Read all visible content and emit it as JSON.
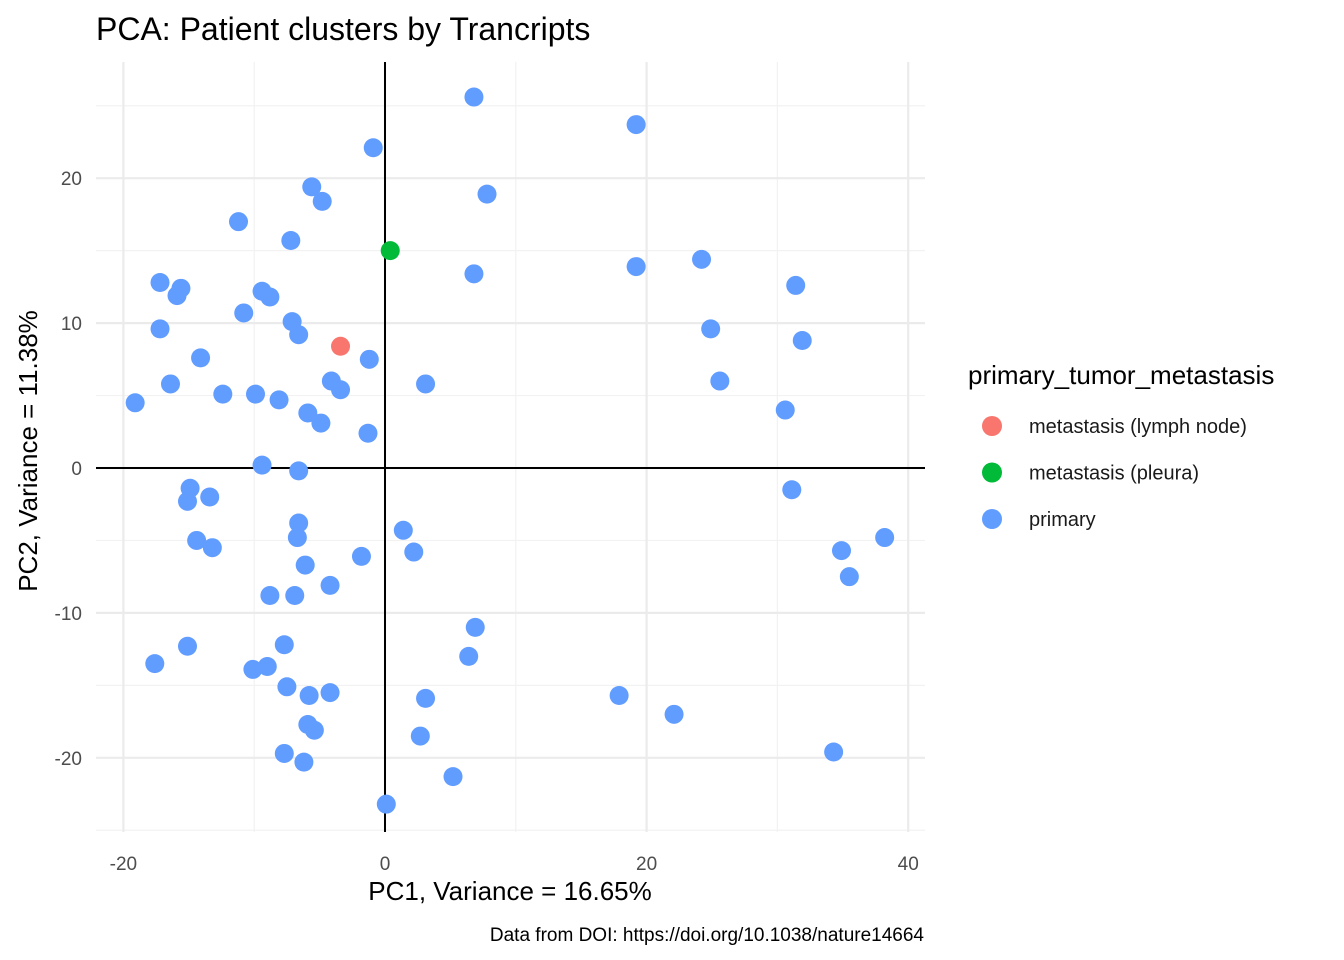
{
  "chart_data": {
    "type": "scatter",
    "title": "PCA: Patient clusters by Trancripts",
    "xlabel": "PC1, Variance = 16.65%",
    "ylabel": "PC2, Variance = 11.38%",
    "caption": "Data from DOI: https://doi.org/10.1038/nature14664",
    "xlim": [
      -22,
      41
    ],
    "ylim": [
      -25.5,
      28
    ],
    "x_ticks": [
      -20,
      0,
      20,
      40
    ],
    "y_ticks": [
      -20,
      -10,
      0,
      10,
      20
    ],
    "x_tick_labels": [
      "-20",
      "0",
      "20",
      "40"
    ],
    "y_tick_labels": [
      "-20",
      "-10",
      "0",
      "10",
      "20"
    ],
    "grid": true,
    "reference_lines": {
      "x": 0,
      "y": 0
    },
    "legend": {
      "title": "primary_tumor_metastasis",
      "placement": "right"
    },
    "series": [
      {
        "name": "metastasis (lymph node)",
        "color": "#F8766D",
        "points": [
          [
            -3.4,
            8.4
          ]
        ]
      },
      {
        "name": "metastasis (pleura)",
        "color": "#00BA38",
        "points": [
          [
            0.4,
            15.0
          ]
        ]
      },
      {
        "name": "primary",
        "color": "#619CFF",
        "points": [
          [
            6.8,
            25.6
          ],
          [
            19.2,
            23.7
          ],
          [
            -0.9,
            22.1
          ],
          [
            -5.6,
            19.4
          ],
          [
            7.8,
            18.9
          ],
          [
            -4.8,
            18.4
          ],
          [
            -11.2,
            17.0
          ],
          [
            -7.2,
            15.7
          ],
          [
            19.2,
            13.9
          ],
          [
            6.8,
            13.4
          ],
          [
            24.2,
            14.4
          ],
          [
            31.4,
            12.6
          ],
          [
            -17.2,
            12.8
          ],
          [
            -15.6,
            12.4
          ],
          [
            -15.9,
            11.9
          ],
          [
            -9.4,
            12.2
          ],
          [
            -8.8,
            11.8
          ],
          [
            -10.8,
            10.7
          ],
          [
            -7.1,
            10.1
          ],
          [
            -6.6,
            9.2
          ],
          [
            24.9,
            9.6
          ],
          [
            31.9,
            8.8
          ],
          [
            -17.2,
            9.6
          ],
          [
            -14.1,
            7.6
          ],
          [
            -1.2,
            7.5
          ],
          [
            -16.4,
            5.8
          ],
          [
            -12.4,
            5.1
          ],
          [
            -9.9,
            5.1
          ],
          [
            -8.1,
            4.7
          ],
          [
            -4.1,
            6.0
          ],
          [
            -3.4,
            5.4
          ],
          [
            3.1,
            5.8
          ],
          [
            25.6,
            6.0
          ],
          [
            30.6,
            4.0
          ],
          [
            -19.1,
            4.5
          ],
          [
            -5.9,
            3.8
          ],
          [
            -4.9,
            3.1
          ],
          [
            -1.3,
            2.4
          ],
          [
            -9.4,
            0.2
          ],
          [
            -6.6,
            -0.2
          ],
          [
            31.1,
            -1.5
          ],
          [
            -14.9,
            -1.4
          ],
          [
            -15.1,
            -2.3
          ],
          [
            -13.4,
            -2.0
          ],
          [
            -6.6,
            -3.8
          ],
          [
            1.4,
            -4.3
          ],
          [
            -14.4,
            -5.0
          ],
          [
            -13.2,
            -5.5
          ],
          [
            -6.7,
            -4.8
          ],
          [
            2.2,
            -5.8
          ],
          [
            -1.8,
            -6.1
          ],
          [
            -6.1,
            -6.7
          ],
          [
            34.9,
            -5.7
          ],
          [
            38.2,
            -4.8
          ],
          [
            35.5,
            -7.5
          ],
          [
            -4.2,
            -8.1
          ],
          [
            -8.8,
            -8.8
          ],
          [
            -6.9,
            -8.8
          ],
          [
            6.9,
            -11.0
          ],
          [
            -15.1,
            -12.3
          ],
          [
            -7.7,
            -12.2
          ],
          [
            6.4,
            -13.0
          ],
          [
            -17.6,
            -13.5
          ],
          [
            -10.1,
            -13.9
          ],
          [
            -9.0,
            -13.7
          ],
          [
            -7.5,
            -15.1
          ],
          [
            -4.2,
            -15.5
          ],
          [
            -5.8,
            -15.7
          ],
          [
            3.1,
            -15.9
          ],
          [
            17.9,
            -15.7
          ],
          [
            22.1,
            -17.0
          ],
          [
            -5.9,
            -17.7
          ],
          [
            -5.4,
            -18.1
          ],
          [
            2.7,
            -18.5
          ],
          [
            -7.7,
            -19.7
          ],
          [
            -6.2,
            -20.3
          ],
          [
            34.3,
            -19.6
          ],
          [
            5.2,
            -21.3
          ],
          [
            0.1,
            -23.2
          ]
        ]
      }
    ]
  }
}
